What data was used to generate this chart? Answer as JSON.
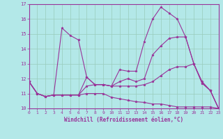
{
  "xlabel": "Windchill (Refroidissement éolien,°C)",
  "xlim": [
    0,
    23
  ],
  "ylim": [
    10,
    17
  ],
  "yticks": [
    10,
    11,
    12,
    13,
    14,
    15,
    16,
    17
  ],
  "xticks": [
    0,
    1,
    2,
    3,
    4,
    5,
    6,
    7,
    8,
    9,
    10,
    11,
    12,
    13,
    14,
    15,
    16,
    17,
    18,
    19,
    20,
    21,
    22,
    23
  ],
  "bg_color": "#b3e8e8",
  "line_color": "#993399",
  "grid_color": "#99ccbb",
  "lines": [
    [
      11.8,
      11.0,
      10.8,
      10.9,
      10.9,
      10.9,
      10.9,
      11.0,
      11.0,
      11.0,
      10.75,
      10.65,
      10.55,
      10.45,
      10.4,
      10.3,
      10.3,
      10.2,
      10.1,
      10.1,
      10.1,
      10.1,
      10.1,
      10.0
    ],
    [
      11.8,
      11.0,
      10.8,
      10.9,
      15.4,
      14.9,
      14.6,
      12.1,
      11.6,
      11.6,
      11.5,
      12.6,
      12.5,
      12.5,
      14.5,
      16.0,
      16.8,
      16.4,
      16.0,
      14.8,
      13.0,
      11.8,
      11.2,
      10.0
    ],
    [
      11.8,
      11.0,
      10.8,
      10.9,
      10.9,
      10.9,
      10.9,
      12.1,
      11.6,
      11.6,
      11.5,
      11.8,
      12.0,
      11.8,
      12.0,
      13.6,
      14.2,
      14.7,
      14.8,
      14.8,
      13.0,
      11.7,
      11.2,
      10.0
    ],
    [
      11.8,
      11.0,
      10.8,
      10.9,
      10.9,
      10.9,
      10.9,
      11.5,
      11.6,
      11.6,
      11.5,
      11.5,
      11.5,
      11.5,
      11.6,
      11.8,
      12.2,
      12.6,
      12.8,
      12.8,
      13.0,
      11.7,
      11.2,
      10.0
    ]
  ]
}
